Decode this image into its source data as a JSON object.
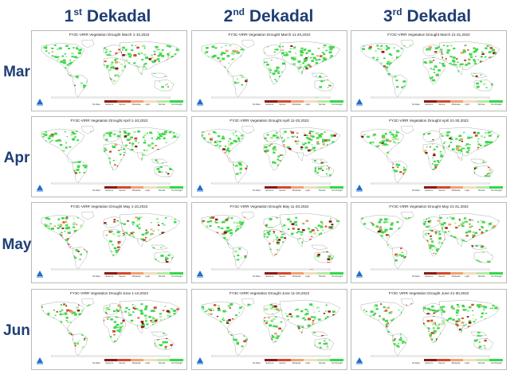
{
  "columns": [
    {
      "num": "1",
      "suffix": "st",
      "label": "Dekadal"
    },
    {
      "num": "2",
      "suffix": "nd",
      "label": "Dekadal"
    },
    {
      "num": "3",
      "suffix": "rd",
      "label": "Dekadal"
    }
  ],
  "rows": [
    "Mar",
    "Apr",
    "May",
    "Jun"
  ],
  "panel_titles": [
    [
      "FY3C-VIRR Vegetation Drought March 1-10,2022",
      "FY3C-VIRR Vegetation Drought March 11-20,2022",
      "FY3C-VIRR Vegetation Drought March 21-31,2022"
    ],
    [
      "FY3C-VIRR Vegetation Drought April 1-10,2022",
      "FY3C-VIRR Vegetation Drought April 11-20,2022",
      "FY3C-VIRR Vegetation Drought April 21-30,2022"
    ],
    [
      "FY3C-VIRR Vegetation Drought May 1-10,2022",
      "FY3C-VIRR Vegetation Drought May 11-20,2022",
      "FY3C-VIRR Vegetation Drought May 21-31,2022"
    ],
    [
      "FY3C-VIRR Vegetation Drought June 1-10,2022",
      "FY3C-VIRR Vegetation Drought June 11-20,2022",
      "FY3C-VIRR Vegetation Drought June 21-30,2022"
    ]
  ],
  "legend": [
    {
      "label": "No Data",
      "color": "#ffffff"
    },
    {
      "label": "Extreme",
      "color": "#8b1a10"
    },
    {
      "label": "Severe",
      "color": "#d2492c"
    },
    {
      "label": "Moderate",
      "color": "#f0a070"
    },
    {
      "label": "Light",
      "color": "#f5dcc0"
    },
    {
      "label": "Normal",
      "color": "#b6eba0"
    },
    {
      "label": "No Drought",
      "color": "#2fd94a"
    }
  ],
  "colors": {
    "heading": "#1f3e74",
    "vegetation_green": "#3fd84b",
    "drought_red": "#c8402a",
    "coast_outline": "#9a9a9a",
    "logo_blue": "#1e6fc8"
  },
  "icons": {
    "logo": "satellite-center-logo-icon"
  }
}
